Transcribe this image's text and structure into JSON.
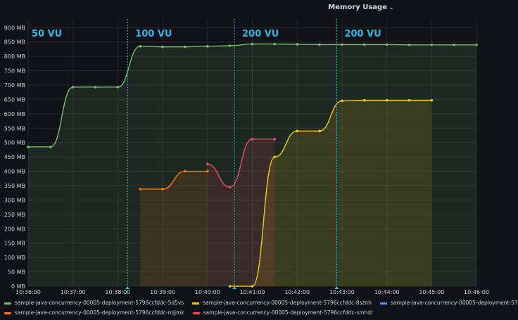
{
  "panel": {
    "title": "Memory Usage"
  },
  "chart_data": {
    "type": "line",
    "title": "Memory Usage",
    "xlabel": "",
    "ylabel": "",
    "x_ticks": [
      "10:36:00",
      "10:37:00",
      "10:38:00",
      "10:39:00",
      "10:40:00",
      "10:41:00",
      "10:42:00",
      "10:43:00",
      "10:44:00",
      "10:45:00",
      "10:46:00"
    ],
    "y_ticks": [
      "0 MB",
      "50 MB",
      "100 MB",
      "150 MB",
      "200 MB",
      "250 MB",
      "300 MB",
      "350 MB",
      "400 MB",
      "450 MB",
      "500 MB",
      "550 MB",
      "600 MB",
      "650 MB",
      "700 MB",
      "750 MB",
      "800 MB",
      "850 MB",
      "900 MB"
    ],
    "ylim": [
      0,
      930
    ],
    "xlim": [
      "10:36:00",
      "10:46:00"
    ],
    "grid": true,
    "legend_position": "bottom",
    "series": [
      {
        "name": "sample-java-concurrency-00005-deployment-5796ccfddc-5d5vs",
        "color": "#73bf69",
        "x": [
          "10:36:00",
          "10:36:30",
          "10:37:00",
          "10:37:30",
          "10:38:00",
          "10:38:30",
          "10:39:00",
          "10:39:30",
          "10:40:00",
          "10:40:30",
          "10:41:00",
          "10:41:30",
          "10:42:00",
          "10:42:30",
          "10:43:00",
          "10:43:30",
          "10:44:00",
          "10:44:30",
          "10:45:00",
          "10:45:30",
          "10:46:00"
        ],
        "values": [
          485,
          485,
          693,
          693,
          693,
          835,
          833,
          833,
          835,
          837,
          843,
          843,
          842,
          841,
          841,
          841,
          841,
          840,
          840,
          840,
          840
        ]
      },
      {
        "name": "sample-java-concurrency-00005-deployment-5796ccfddc-8sznh",
        "color": "#f2cc0c",
        "x": [
          "10:40:30",
          "10:41:00",
          "10:41:30",
          "10:42:00",
          "10:42:30",
          "10:43:00",
          "10:43:30",
          "10:44:00",
          "10:44:30",
          "10:45:00"
        ],
        "values": [
          0,
          0,
          450,
          540,
          540,
          645,
          647,
          647,
          647,
          647
        ]
      },
      {
        "name": "sample-java-concurrency-00005-deployment-5796ccfddc-mjjmk",
        "color": "#ff780a",
        "x": [
          "10:38:30",
          "10:39:00",
          "10:39:30",
          "10:40:00"
        ],
        "values": [
          338,
          338,
          400,
          400
        ]
      },
      {
        "name": "sample-java-concurrency-00005-deployment-5796ccfddc-smhdr",
        "color": "#f2495c",
        "x": [
          "10:40:00",
          "10:40:30",
          "10:41:00",
          "10:41:30"
        ],
        "values": [
          425,
          345,
          512,
          512
        ]
      },
      {
        "name": "sample-java-concurrency-00005-deployment-57",
        "color": "#5794f2",
        "x": [],
        "values": []
      }
    ],
    "annotations": [
      {
        "x": "10:38:13",
        "label": "100 VU"
      },
      {
        "x": "10:40:36",
        "label": "200 VU"
      },
      {
        "x": "10:42:53",
        "label": "200 VU"
      }
    ],
    "text_annotations": [
      {
        "x": "10:36:00",
        "label": "50 VU"
      }
    ]
  }
}
